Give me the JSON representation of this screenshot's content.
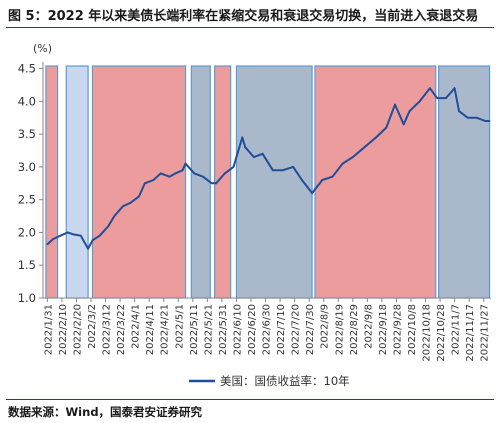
{
  "page": {
    "title": "图 5：2022 年以来美债长端利率在紧缩交易和衰退交易切换，当前进入衰退交易",
    "source": "数据来源：Wind，国泰君安证券研究"
  },
  "colors": {
    "line": "#1f4e9a",
    "tightening_fill": "#ec9c9c",
    "tightening_stroke": "#5b9bd5",
    "recession_fill": "#aab8cc",
    "recession_stroke": "#5b9bd5",
    "light_fill": "#c9d8ef",
    "rule": "#8b1a1a",
    "axis": "#888888"
  },
  "chart_data": {
    "type": "line",
    "ylabel": "(%)",
    "ylim": [
      1.0,
      4.6
    ],
    "yticks": [
      "1.0",
      "1.5",
      "2.0",
      "2.5",
      "3.0",
      "3.5",
      "4.0",
      "4.5"
    ],
    "xlim": [
      "2022-01-28",
      "2022-12-02"
    ],
    "xticks": [
      "2022/1/31",
      "2022/2/10",
      "2022/2/20",
      "2022/3/2",
      "2022/3/12",
      "2022/3/22",
      "2022/4/1",
      "2022/4/11",
      "2022/4/21",
      "2022/5/1",
      "2022/5/11",
      "2022/5/21",
      "2022/5/31",
      "2022/6/10",
      "2022/6/20",
      "2022/6/30",
      "2022/7/10",
      "2022/7/20",
      "2022/7/30",
      "2022/8/9",
      "2022/8/19",
      "2022/8/29",
      "2022/9/8",
      "2022/9/18",
      "2022/9/28",
      "2022/10/8",
      "2022/10/18",
      "2022/10/28",
      "2022/11/7",
      "2022/11/17",
      "2022/11/27"
    ],
    "series": [
      {
        "name": "美国：国债收益率：10年",
        "x": [
          "2022-01-31",
          "2022-02-04",
          "2022-02-09",
          "2022-02-14",
          "2022-02-18",
          "2022-02-23",
          "2022-02-28",
          "2022-03-03",
          "2022-03-08",
          "2022-03-14",
          "2022-03-18",
          "2022-03-24",
          "2022-03-29",
          "2022-04-04",
          "2022-04-08",
          "2022-04-14",
          "2022-04-19",
          "2022-04-25",
          "2022-04-29",
          "2022-05-04",
          "2022-05-06",
          "2022-05-12",
          "2022-05-18",
          "2022-05-24",
          "2022-05-27",
          "2022-06-02",
          "2022-06-08",
          "2022-06-14",
          "2022-06-16",
          "2022-06-22",
          "2022-06-28",
          "2022-07-05",
          "2022-07-12",
          "2022-07-19",
          "2022-07-25",
          "2022-08-01",
          "2022-08-08",
          "2022-08-15",
          "2022-08-22",
          "2022-08-29",
          "2022-09-06",
          "2022-09-14",
          "2022-09-21",
          "2022-09-27",
          "2022-10-03",
          "2022-10-07",
          "2022-10-14",
          "2022-10-21",
          "2022-10-26",
          "2022-11-01",
          "2022-11-07",
          "2022-11-10",
          "2022-11-16",
          "2022-11-22",
          "2022-11-28",
          "2022-12-01"
        ],
        "values": [
          1.82,
          1.9,
          1.95,
          2.0,
          1.97,
          1.95,
          1.75,
          1.88,
          1.95,
          2.1,
          2.25,
          2.4,
          2.45,
          2.55,
          2.75,
          2.8,
          2.9,
          2.85,
          2.9,
          2.95,
          3.05,
          2.9,
          2.85,
          2.75,
          2.75,
          2.9,
          3.0,
          3.45,
          3.3,
          3.15,
          3.2,
          2.95,
          2.95,
          3.0,
          2.8,
          2.6,
          2.8,
          2.85,
          3.05,
          3.15,
          3.3,
          3.45,
          3.6,
          3.95,
          3.65,
          3.85,
          4.0,
          4.2,
          4.05,
          4.05,
          4.2,
          3.85,
          3.75,
          3.75,
          3.7,
          3.7
        ]
      }
    ],
    "regimes": [
      {
        "kind": "tightening",
        "start": "2022-01-30",
        "end": "2022-02-07"
      },
      {
        "kind": "light",
        "start": "2022-02-13",
        "end": "2022-02-28"
      },
      {
        "kind": "tightening",
        "start": "2022-03-03",
        "end": "2022-05-06"
      },
      {
        "kind": "recession",
        "start": "2022-05-10",
        "end": "2022-05-23"
      },
      {
        "kind": "tightening",
        "start": "2022-05-26",
        "end": "2022-06-06"
      },
      {
        "kind": "recession",
        "start": "2022-06-10",
        "end": "2022-08-01"
      },
      {
        "kind": "tightening",
        "start": "2022-08-03",
        "end": "2022-10-25"
      },
      {
        "kind": "recession",
        "start": "2022-10-27",
        "end": "2022-12-01"
      }
    ],
    "legend": {
      "placement": "bottom-center"
    }
  }
}
